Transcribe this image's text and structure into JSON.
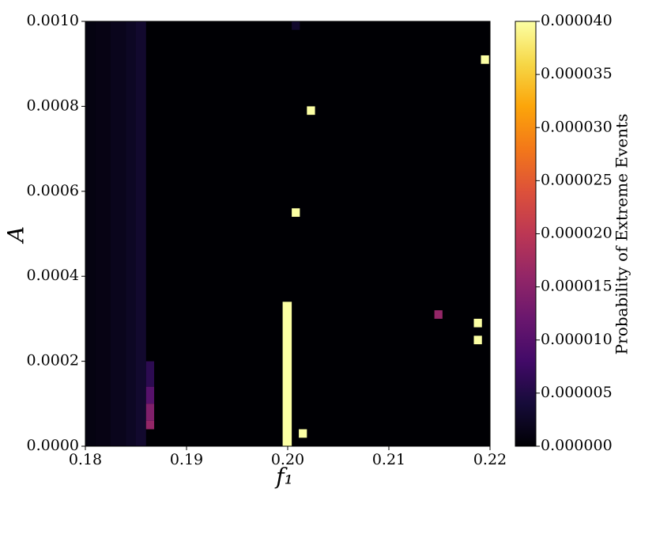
{
  "chart_data": {
    "type": "heatmap",
    "xlabel": "f₁",
    "ylabel": "A",
    "colorbar_label": "Probability of Extreme Events",
    "colormap": "inferno",
    "xlim": [
      0.18,
      0.22
    ],
    "xticks": [
      0.18,
      0.19,
      {
        "value": 0.2,
        "label": "0.20"
      },
      0.21,
      0.22
    ],
    "ylim": [
      0,
      0.001
    ],
    "yticks": [
      {
        "value": 0,
        "label": "0.0000"
      },
      {
        "value": 0.0002,
        "label": "0.0002"
      },
      {
        "value": 0.0004,
        "label": "0.0004"
      },
      {
        "value": 0.0006,
        "label": "0.0006"
      },
      {
        "value": 0.0008,
        "label": "0.0008"
      },
      {
        "value": 0.001,
        "label": "0.0010"
      }
    ],
    "clim": [
      0,
      4e-05
    ],
    "cticks": [
      {
        "value": 0,
        "label": "0.000000"
      },
      {
        "value": 5e-06,
        "label": "0.000005"
      },
      {
        "value": 1e-05,
        "label": "0.000010"
      },
      {
        "value": 1.5e-05,
        "label": "0.000015"
      },
      {
        "value": 2e-05,
        "label": "0.000020"
      },
      {
        "value": 2.5e-05,
        "label": "0.000025"
      },
      {
        "value": 3e-05,
        "label": "0.000030"
      },
      {
        "value": 3.5e-05,
        "label": "0.000035"
      },
      {
        "value": 4e-05,
        "label": "0.000040"
      }
    ],
    "cells": [
      {
        "x": [
          0.18,
          0.181
        ],
        "y": [
          0,
          0.001
        ],
        "value": 1e-06
      },
      {
        "x": [
          0.181,
          0.1825
        ],
        "y": [
          0,
          0.001
        ],
        "value": 1.2e-06
      },
      {
        "x": [
          0.1825,
          0.184
        ],
        "y": [
          0,
          0.001
        ],
        "value": 1.8e-06
      },
      {
        "x": [
          0.184,
          0.185
        ],
        "y": [
          0,
          0.001
        ],
        "value": 2.4e-06
      },
      {
        "x": [
          0.185,
          0.186
        ],
        "y": [
          0,
          0.001
        ],
        "value": 3.2e-06
      },
      {
        "x": [
          0.186,
          0.1868
        ],
        "y": [
          0.00014,
          0.0002
        ],
        "value": 6e-06
      },
      {
        "x": [
          0.186,
          0.1868
        ],
        "y": [
          0.0001,
          0.00014
        ],
        "value": 1e-05
      },
      {
        "x": [
          0.186,
          0.1868
        ],
        "y": [
          6e-05,
          0.0001
        ],
        "value": 1.4e-05
      },
      {
        "x": [
          0.186,
          0.1868
        ],
        "y": [
          4e-05,
          6e-05
        ],
        "value": 1.6e-05
      },
      {
        "x": [
          0.1995,
          0.2004
        ],
        "y": [
          0,
          0.00034
        ],
        "value": 4e-05
      },
      {
        "x": [
          0.2011,
          0.2019
        ],
        "y": [
          2e-05,
          4e-05
        ],
        "value": 4e-05
      },
      {
        "x": [
          0.2004,
          0.2012
        ],
        "y": [
          0.00054,
          0.00056
        ],
        "value": 4e-05
      },
      {
        "x": [
          0.2019,
          0.2027
        ],
        "y": [
          0.00078,
          0.0008
        ],
        "value": 4e-05
      },
      {
        "x": [
          0.2191,
          0.2199
        ],
        "y": [
          0.0009,
          0.00092
        ],
        "value": 4e-05
      },
      {
        "x": [
          0.2145,
          0.2153
        ],
        "y": [
          0.0003,
          0.00032
        ],
        "value": 1.6e-05
      },
      {
        "x": [
          0.2184,
          0.2192
        ],
        "y": [
          0.00028,
          0.0003
        ],
        "value": 4e-05
      },
      {
        "x": [
          0.2184,
          0.2192
        ],
        "y": [
          0.00024,
          0.00026
        ],
        "value": 4e-05
      },
      {
        "x": [
          0.2004,
          0.2012
        ],
        "y": [
          0.00098,
          0.001
        ],
        "value": 3e-06
      }
    ]
  }
}
